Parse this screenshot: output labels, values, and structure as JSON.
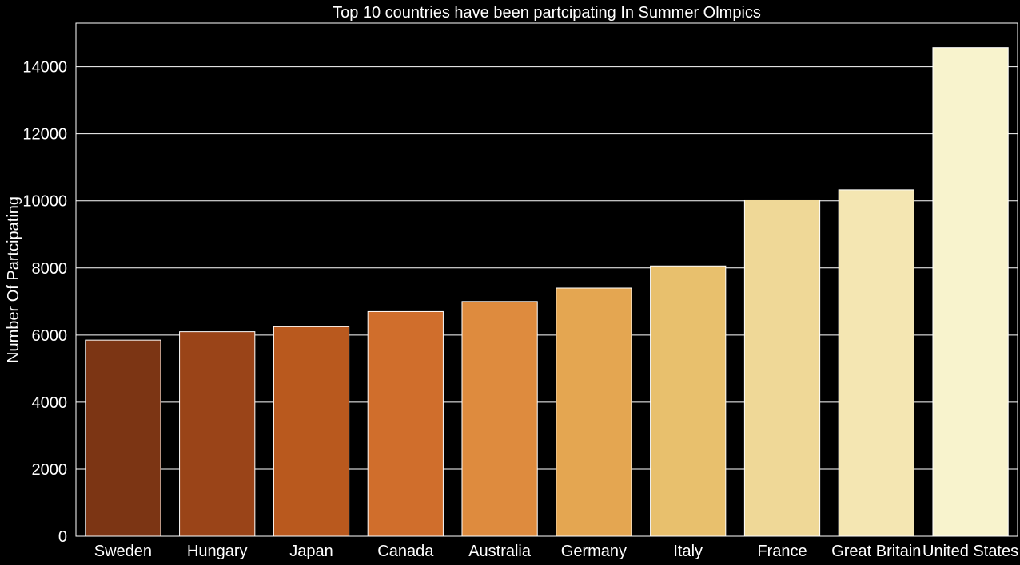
{
  "chart_data": {
    "type": "bar",
    "title": "Top 10 countries have been partcipating In Summer Olmpics",
    "xlabel": "",
    "ylabel": "Number Of Partcipating",
    "categories": [
      "Sweden",
      "Hungary",
      "Japan",
      "Canada",
      "Australia",
      "Germany",
      "Italy",
      "France",
      "Great Britain",
      "United States"
    ],
    "values": [
      5850,
      6100,
      6250,
      6700,
      7000,
      7400,
      8060,
      10030,
      10330,
      14570
    ],
    "ylim": [
      0,
      15300
    ],
    "yticks": [
      0,
      2000,
      4000,
      6000,
      8000,
      10000,
      12000,
      14000
    ],
    "grid": true,
    "legend": "none",
    "colors": {
      "background": "#000000",
      "grid": "#ffffff",
      "text": "#ffffff",
      "bar_edge": "#ffffff",
      "bars": [
        "#7c3514",
        "#9a4418",
        "#b9591e",
        "#d06e2c",
        "#de8b3e",
        "#e4a651",
        "#e8c06d",
        "#efd897",
        "#f4e6b2",
        "#f8f3cd"
      ]
    }
  }
}
